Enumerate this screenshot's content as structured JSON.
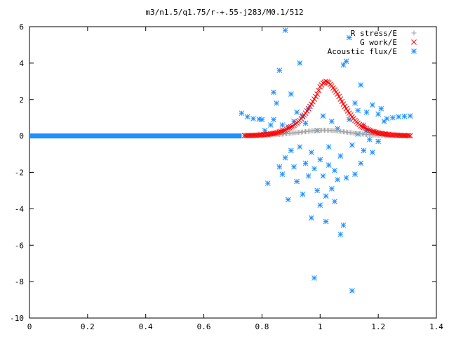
{
  "chart_data": {
    "type": "scatter",
    "title": "m3/n1.5/q1.75/r-+.55-j283/M0.1/512",
    "xlabel": "",
    "ylabel": "",
    "xlim": [
      0,
      1.4
    ],
    "ylim": [
      -10,
      6
    ],
    "x_ticks": [
      "0",
      "0.2",
      "0.4",
      "0.6",
      "0.8",
      "1",
      "1.2",
      "1.4"
    ],
    "y_ticks": [
      "6",
      "4",
      "2",
      "0",
      "-2",
      "-4",
      "-6",
      "-8",
      "-10"
    ],
    "grid": false,
    "legend_position": "top-right",
    "series": [
      {
        "name": "R stress/E",
        "marker": "plus",
        "color": "#a0a0a0",
        "points": [
          [
            0.74,
            0.01
          ],
          [
            0.78,
            0.02
          ],
          [
            0.82,
            0.04
          ],
          [
            0.86,
            0.08
          ],
          [
            0.9,
            0.15
          ],
          [
            0.93,
            0.2
          ],
          [
            0.96,
            0.26
          ],
          [
            0.99,
            0.3
          ],
          [
            1.01,
            0.32
          ],
          [
            1.03,
            0.31
          ],
          [
            1.06,
            0.27
          ],
          [
            1.09,
            0.21
          ],
          [
            1.12,
            0.15
          ],
          [
            1.16,
            0.08
          ],
          [
            1.2,
            0.04
          ],
          [
            1.25,
            0.02
          ],
          [
            1.3,
            0.01
          ]
        ]
      },
      {
        "name": "G work/E",
        "marker": "cross",
        "color": "#ff0000",
        "points": [
          [
            0.74,
            0.02
          ],
          [
            0.78,
            0.04
          ],
          [
            0.82,
            0.09
          ],
          [
            0.85,
            0.17
          ],
          [
            0.88,
            0.32
          ],
          [
            0.91,
            0.58
          ],
          [
            0.93,
            0.85
          ],
          [
            0.95,
            1.25
          ],
          [
            0.97,
            1.75
          ],
          [
            0.99,
            2.3
          ],
          [
            1.0,
            2.7
          ],
          [
            1.01,
            2.9
          ],
          [
            1.02,
            3.0
          ],
          [
            1.03,
            2.92
          ],
          [
            1.04,
            2.75
          ],
          [
            1.06,
            2.3
          ],
          [
            1.08,
            1.75
          ],
          [
            1.1,
            1.25
          ],
          [
            1.12,
            0.85
          ],
          [
            1.14,
            0.55
          ],
          [
            1.17,
            0.3
          ],
          [
            1.2,
            0.16
          ],
          [
            1.24,
            0.07
          ],
          [
            1.28,
            0.03
          ],
          [
            1.31,
            0.01
          ]
        ]
      },
      {
        "name": "Acoustic flux/E",
        "marker": "star",
        "color": "#1e90ff",
        "baseline": {
          "x_from": 0,
          "x_to": 0.73,
          "y": 0
        },
        "points": [
          [
            0.73,
            1.25
          ],
          [
            0.75,
            1.05
          ],
          [
            0.77,
            0.95
          ],
          [
            0.79,
            0.92
          ],
          [
            0.8,
            0.9
          ],
          [
            0.81,
            0.3
          ],
          [
            0.82,
            -2.6
          ],
          [
            0.83,
            0.6
          ],
          [
            0.84,
            2.4
          ],
          [
            0.84,
            0.9
          ],
          [
            0.85,
            1.8
          ],
          [
            0.86,
            -1.7
          ],
          [
            0.86,
            3.6
          ],
          [
            0.87,
            0.6
          ],
          [
            0.87,
            -2.1
          ],
          [
            0.88,
            5.8
          ],
          [
            0.88,
            -1.2
          ],
          [
            0.89,
            -3.5
          ],
          [
            0.89,
            0.5
          ],
          [
            0.9,
            -0.8
          ],
          [
            0.9,
            2.3
          ],
          [
            0.91,
            -1.7
          ],
          [
            0.91,
            0.8
          ],
          [
            0.92,
            1.3
          ],
          [
            0.92,
            -2.5
          ],
          [
            0.93,
            4.0
          ],
          [
            0.93,
            -0.6
          ],
          [
            0.94,
            1.1
          ],
          [
            0.94,
            -3.2
          ],
          [
            0.95,
            -1.5
          ],
          [
            0.95,
            0.7
          ],
          [
            0.96,
            -2.2
          ],
          [
            0.96,
            1.5
          ],
          [
            0.97,
            -0.9
          ],
          [
            0.97,
            -4.5
          ],
          [
            0.98,
            -7.8
          ],
          [
            0.98,
            -1.8
          ],
          [
            0.99,
            0.3
          ],
          [
            0.99,
            -3.0
          ],
          [
            1.0,
            -1.3
          ],
          [
            1.0,
            -3.8
          ],
          [
            1.01,
            -2.2
          ],
          [
            1.01,
            1.1
          ],
          [
            1.02,
            -4.7
          ],
          [
            1.02,
            -3.3
          ],
          [
            1.03,
            -1.6
          ],
          [
            1.03,
            -0.6
          ],
          [
            1.04,
            -2.9
          ],
          [
            1.04,
            0.8
          ],
          [
            1.05,
            -3.6
          ],
          [
            1.05,
            -1.9
          ],
          [
            1.06,
            0.4
          ],
          [
            1.06,
            -2.4
          ],
          [
            1.07,
            -5.4
          ],
          [
            1.07,
            -1.1
          ],
          [
            1.08,
            3.9
          ],
          [
            1.08,
            -4.9
          ],
          [
            1.09,
            4.1
          ],
          [
            1.09,
            -2.3
          ],
          [
            1.1,
            5.4
          ],
          [
            1.1,
            0.9
          ],
          [
            1.11,
            -8.5
          ],
          [
            1.11,
            -0.5
          ],
          [
            1.12,
            1.8
          ],
          [
            1.12,
            -2.1
          ],
          [
            1.13,
            1.4
          ],
          [
            1.13,
            0.1
          ],
          [
            1.14,
            2.8
          ],
          [
            1.14,
            -1.5
          ],
          [
            1.15,
            0.6
          ],
          [
            1.15,
            -0.8
          ],
          [
            1.16,
            1.3
          ],
          [
            1.16,
            0.3
          ],
          [
            1.17,
            -0.2
          ],
          [
            1.18,
            1.7
          ],
          [
            1.18,
            -0.9
          ],
          [
            1.19,
            0.2
          ],
          [
            1.2,
            1.2
          ],
          [
            1.2,
            -0.3
          ],
          [
            1.21,
            1.5
          ],
          [
            1.22,
            0.8
          ],
          [
            1.23,
            0.95
          ],
          [
            1.25,
            1.0
          ],
          [
            1.27,
            1.05
          ],
          [
            1.29,
            1.08
          ],
          [
            1.31,
            1.1
          ]
        ]
      }
    ]
  }
}
